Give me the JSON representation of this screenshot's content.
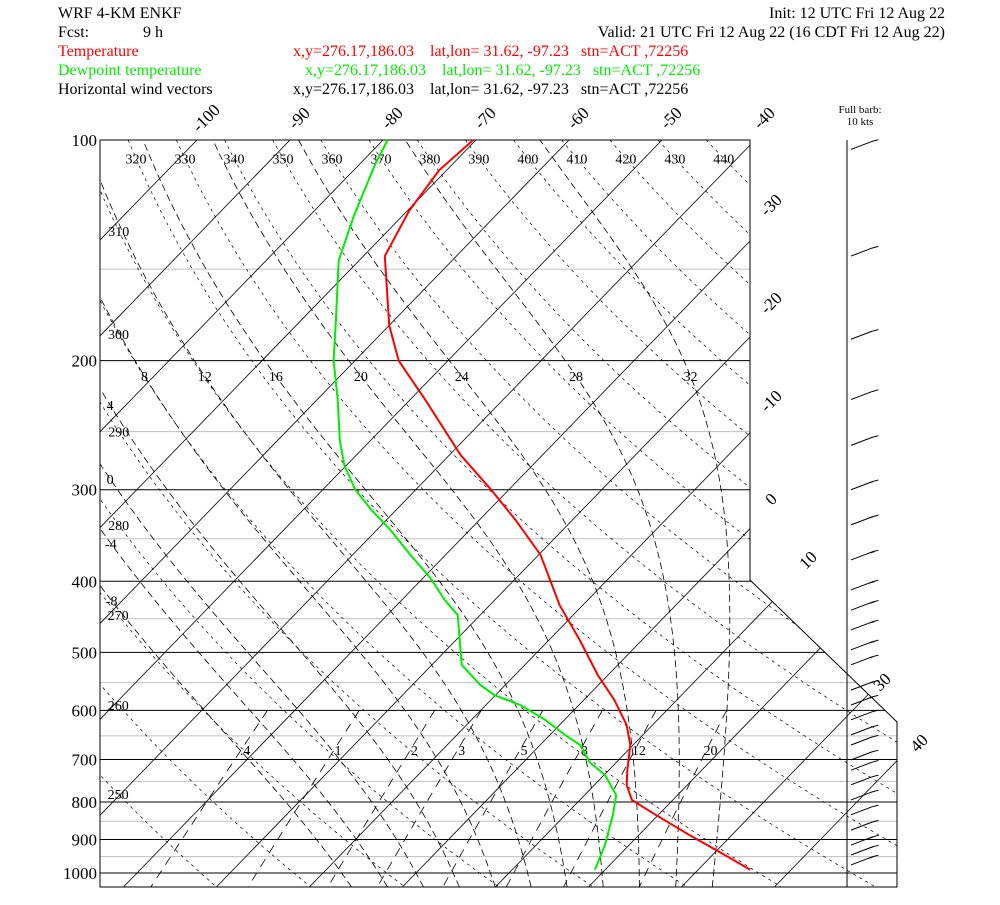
{
  "chart_data": {
    "type": "skew-t",
    "title": "WRF 4-KM ENKF",
    "init": "Init: 12 UTC Fri 12 Aug 22",
    "forecast_label": "Fcst:",
    "forecast_hour": "9 h",
    "valid": "Valid: 21 UTC Fri 12 Aug 22 (16 CDT Fri 12 Aug 22)",
    "ylim": [
      100,
      1045
    ],
    "ylog": true,
    "yticks": [
      100,
      200,
      300,
      400,
      500,
      600,
      700,
      800,
      900,
      1000
    ],
    "minor_isobars": [
      150,
      250,
      350,
      450,
      550,
      650,
      750,
      850,
      950
    ],
    "isotherm_ticks": [
      -100,
      -90,
      -80,
      -70,
      -60,
      -50,
      -40,
      -30,
      -20,
      -10,
      0,
      10,
      {
        "value": 20,
        "label": null
      },
      30,
      40
    ],
    "dry_adiabat_ticks": [
      250,
      260,
      270,
      280,
      290,
      300,
      310,
      320,
      330,
      340,
      350,
      360,
      370,
      380,
      390,
      400,
      410,
      420,
      430,
      440
    ],
    "moist_adiabat_ticks": [
      -8,
      -4,
      0,
      4,
      8,
      12,
      16,
      20,
      24,
      28,
      32
    ],
    "mixing_ratio_ticks": [
      {
        "value": 0.4,
        "label": ".4"
      },
      1,
      2,
      3,
      5,
      8,
      12,
      20
    ],
    "series": [
      {
        "name": "Temperature",
        "color": "#ff0000",
        "location": "x,y=276.17,186.03    lat,lon= 31.62, -97.23   stn=ACT ,72256",
        "pressure": [
          990,
          954,
          888,
          833,
          795,
          759,
          724,
          669,
          628,
          581,
          537,
          481,
          431,
          368,
          330,
          300,
          269,
          226,
          200,
          179,
          144,
          125,
          110,
          100
        ],
        "values": [
          35.6,
          32.2,
          25.5,
          19.7,
          15.6,
          13.5,
          12.0,
          9.7,
          7.2,
          3.3,
          -1.1,
          -6.7,
          -12.5,
          -19.8,
          -26.1,
          -31.9,
          -38.8,
          -48.4,
          -55.3,
          -60.0,
          -67.7,
          -69.8,
          -70.8,
          -70.3
        ]
      },
      {
        "name": "Dewpoint temperature",
        "color": "#00ee00",
        "location": "x,y=276.17,186.03    lat,lon= 31.62, -97.23   stn=ACT ,72256",
        "pressure": [
          990,
          916,
          833,
          783,
          735,
          706,
          669,
          648,
          618,
          590,
          572,
          554,
          520,
          496,
          445,
          424,
          396,
          368,
          340,
          320,
          300,
          278,
          257,
          226,
          200,
          176,
          146,
          127,
          108,
          100
        ],
        "values": [
          18.9,
          17.4,
          15.1,
          13.4,
          10.1,
          7.1,
          4.3,
          1.6,
          -2.1,
          -6.3,
          -10.1,
          -12.7,
          -16.8,
          -18.5,
          -22.4,
          -25.4,
          -29.2,
          -33.8,
          -38.6,
          -42.6,
          -46.5,
          -50.2,
          -53.3,
          -57.8,
          -62.3,
          -66.3,
          -72.2,
          -75.2,
          -78.3,
          -79.5
        ]
      }
    ],
    "wind": {
      "name": "Horizontal wind vectors",
      "color": "#000000",
      "location": "x,y=276.17,186.03    lat,lon= 31.62, -97.23   stn=ACT ,72256",
      "barb_note": [
        "Full barb:",
        "10 kts"
      ],
      "pressure": [
        103,
        144,
        187,
        226,
        261,
        300,
        335,
        374,
        411,
        438,
        466,
        496,
        520,
        563,
        590,
        618,
        648,
        669,
        701,
        724,
        758,
        795,
        833,
        874,
        916,
        945,
        975
      ],
      "speed": [
        10,
        10,
        10,
        10,
        10,
        15,
        15,
        20,
        20,
        20,
        20,
        20,
        15,
        15,
        15,
        10,
        10,
        10,
        10,
        10,
        10,
        10,
        10,
        10,
        15,
        15,
        15
      ]
    }
  }
}
